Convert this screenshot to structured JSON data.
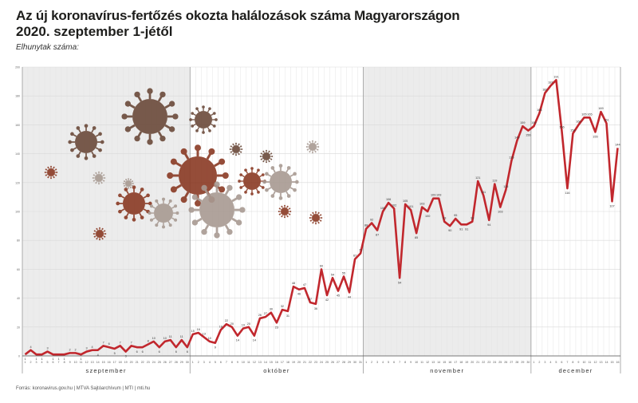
{
  "header": {
    "title": "Az új koronavírus-fertőzés okozta halálozások száma Magyarországon",
    "subtitle": "2020. szeptember 1-jétől",
    "ylabel": "Elhunytak száma:"
  },
  "footer": {
    "text": "Forrás: koronavirus.gov.hu | MTVA Sajtóarchívum | MTI | mti.hu"
  },
  "colors": {
    "line": "#c1272d",
    "shade": "#ececec",
    "grid": "#d9d9d9",
    "virus_brown": "#6b4a3a",
    "virus_rust": "#8a3a24",
    "virus_gray": "#a89a92"
  },
  "chart_data": {
    "type": "line",
    "title": "Az új koronavírus-fertőzés okozta halálozások száma Magyarországon",
    "subtitle": "2020. szeptember 1-jétől",
    "ylabel": "Elhunytak száma:",
    "xlabel": "",
    "ylim": [
      0,
      200
    ],
    "grid": true,
    "months": [
      {
        "label": "szeptember",
        "days": 30,
        "shaded": true
      },
      {
        "label": "október",
        "days": 31,
        "shaded": false
      },
      {
        "label": "november",
        "days": 30,
        "shaded": true
      },
      {
        "label": "december",
        "days": 16,
        "shaded": false
      }
    ],
    "series": [
      {
        "name": "",
        "values": [
          1,
          4,
          1,
          1,
          3,
          1,
          1,
          1,
          2,
          2,
          1,
          3,
          4,
          4,
          7,
          6,
          5,
          7,
          3,
          7,
          6,
          6,
          8,
          10,
          6,
          10,
          11,
          6,
          11,
          6,
          15,
          16,
          13,
          10,
          9,
          18,
          22,
          20,
          14,
          19,
          20,
          14,
          26,
          27,
          30,
          23,
          32,
          31,
          48,
          46,
          47,
          37,
          36,
          60,
          42,
          54,
          45,
          55,
          44,
          67,
          71,
          88,
          92,
          87,
          100,
          106,
          102,
          54,
          105,
          101,
          85,
          103,
          100,
          109,
          109,
          93,
          90,
          95,
          91,
          91,
          93,
          121,
          111,
          94,
          119,
          103,
          115,
          135,
          149,
          159,
          156,
          159,
          168,
          182,
          187,
          191,
          156,
          116,
          154,
          160,
          165,
          165,
          155,
          169,
          161,
          107,
          144
        ]
      }
    ]
  }
}
